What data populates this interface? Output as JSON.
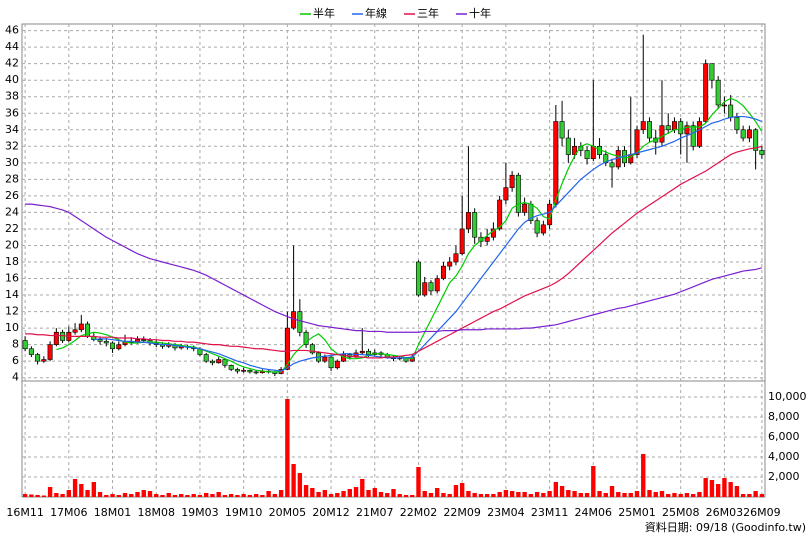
{
  "chart_data": {
    "type": "candlestick",
    "legend": "top",
    "grid": true,
    "source": "資料日期: 09/18  (Goodinfo.tw)",
    "up_color": "#ff0000",
    "down_color": "#33cc33",
    "volume_color": "#ff0000",
    "categories": [
      "16M11",
      null,
      null,
      null,
      null,
      null,
      null,
      "17M06",
      null,
      null,
      null,
      null,
      null,
      null,
      "18M01",
      null,
      null,
      null,
      null,
      null,
      null,
      "18M08",
      null,
      null,
      null,
      null,
      null,
      null,
      "19M03",
      null,
      null,
      null,
      null,
      null,
      null,
      "19M10",
      null,
      null,
      null,
      null,
      null,
      null,
      "20M05",
      null,
      null,
      null,
      null,
      null,
      null,
      "20M12",
      null,
      null,
      null,
      null,
      null,
      null,
      "21M07",
      null,
      null,
      null,
      null,
      null,
      null,
      "22M02",
      null,
      null,
      null,
      null,
      null,
      null,
      "22M09",
      null,
      null,
      null,
      null,
      null,
      null,
      "23M04",
      null,
      null,
      null,
      null,
      null,
      null,
      "23M11",
      null,
      null,
      null,
      null,
      null,
      null,
      "24M06",
      null,
      null,
      null,
      null,
      null,
      null,
      "25M01",
      null,
      null,
      null,
      null,
      null,
      null,
      "25M08",
      null,
      null,
      null,
      null,
      null,
      null,
      "26M03",
      null,
      null,
      null,
      null,
      null,
      "26M09"
    ],
    "open": [
      8.5,
      7.5,
      6.8,
      6,
      6.2,
      8,
      9.5,
      8.5,
      9.5,
      9.8,
      10.5,
      9,
      8.6,
      8.4,
      8.2,
      7.5,
      8,
      8.4,
      8.3,
      8.6,
      8.5,
      8.2,
      8,
      7.8,
      8,
      7.6,
      7.8,
      7.7,
      7.5,
      6.8,
      6,
      5.8,
      6.2,
      5.5,
      5,
      4.8,
      4.9,
      4.7,
      4.6,
      4.8,
      4.7,
      4.5,
      5,
      10,
      12,
      9.5,
      8,
      7,
      6,
      6.5,
      5.2,
      6,
      6.8,
      6.5,
      7,
      7.2,
      6.8,
      7,
      6.8,
      6.5,
      6.3,
      6.4,
      6,
      18,
      14,
      15.5,
      14.5,
      16,
      17.5,
      18,
      19,
      22,
      24,
      21,
      20.5,
      21,
      22,
      25.5,
      27,
      28.5,
      24,
      25,
      23,
      21.5,
      22.5,
      25,
      35,
      33,
      31,
      32,
      31.5,
      30.5,
      32,
      31,
      30,
      29.5,
      31.5,
      30,
      31,
      34,
      35,
      33,
      32.5,
      34.5,
      34,
      35,
      33.5,
      34.5,
      32,
      35,
      42,
      40,
      37,
      37,
      35.5,
      34,
      33,
      34,
      31.5
    ],
    "high": [
      9,
      7.8,
      7,
      6.6,
      8.4,
      10,
      9.8,
      10.2,
      10.6,
      11.6,
      10.8,
      9.4,
      9,
      8.8,
      8.4,
      8.4,
      9.2,
      8.9,
      9,
      9,
      8.8,
      8.6,
      8.3,
      8.3,
      8.2,
      8.1,
      8,
      7.9,
      7.7,
      7,
      6.2,
      6.5,
      6.3,
      5.6,
      5.2,
      5.2,
      5,
      4.9,
      5,
      4.9,
      4.8,
      5.3,
      12,
      20,
      13.5,
      9.8,
      8.2,
      7.2,
      6.8,
      6.6,
      6.2,
      7.2,
      7,
      7.4,
      10,
      7.5,
      7.4,
      7.2,
      7,
      6.7,
      6.6,
      6.5,
      6.9,
      18.2,
      16.2,
      15.8,
      16.4,
      18,
      18.6,
      20,
      26,
      32,
      24.5,
      21.6,
      22,
      22.8,
      26,
      30,
      29,
      28.8,
      25.8,
      25.4,
      23.4,
      23,
      25.5,
      37,
      37.5,
      34,
      33,
      32.5,
      32,
      40,
      33,
      31.5,
      30.5,
      32,
      32,
      38,
      34.5,
      45.5,
      35.5,
      34,
      40,
      36,
      35.5,
      35.4,
      35,
      35,
      35.5,
      42.5,
      42,
      40.5,
      38,
      38.2,
      36,
      34.5,
      34.5,
      34.2,
      32
    ],
    "low": [
      7.2,
      6.5,
      5.6,
      5.8,
      6,
      7.8,
      8.2,
      8.3,
      9.2,
      9.5,
      8.8,
      8.4,
      8,
      7.8,
      7,
      7.3,
      7.8,
      8,
      8.1,
      8.2,
      7.9,
      7.7,
      7.5,
      7.6,
      7.3,
      7.4,
      7.4,
      7.2,
      6.6,
      5.8,
      5.5,
      5.7,
      5.2,
      4.8,
      4.5,
      4.6,
      4.5,
      4.4,
      4.5,
      4.5,
      4.2,
      4.4,
      4.9,
      9.8,
      9,
      7.6,
      6.8,
      5.8,
      5.8,
      4.8,
      5,
      5.9,
      6.2,
      6.4,
      6.8,
      6.5,
      6.7,
      6.5,
      6.3,
      6,
      6.1,
      5.8,
      5.9,
      13.8,
      13.8,
      14,
      14.2,
      15.8,
      17,
      17.6,
      18.8,
      21.5,
      20.2,
      19.8,
      20,
      20.6,
      21.8,
      25,
      26.5,
      23.5,
      23.6,
      22.6,
      21,
      21.2,
      22,
      24.6,
      32,
      30,
      30.5,
      30.8,
      29.8,
      30.2,
      30.5,
      29.6,
      27,
      29.2,
      29.5,
      29.8,
      30.6,
      33.5,
      32.5,
      31,
      32,
      33.5,
      33.6,
      31,
      30,
      31.5,
      31.8,
      34.8,
      39,
      36.5,
      36,
      35,
      33.5,
      32.6,
      32.5,
      29.2,
      30.5
    ],
    "close": [
      7.5,
      6.8,
      6,
      6.2,
      8,
      9.5,
      8.5,
      9.5,
      9.8,
      10.5,
      9,
      8.6,
      8.4,
      8.2,
      7.5,
      8,
      8.4,
      8.3,
      8.6,
      8.5,
      8.2,
      8,
      7.8,
      8,
      7.6,
      7.8,
      7.7,
      7.5,
      6.8,
      6,
      5.8,
      6.2,
      5.5,
      5,
      4.8,
      4.9,
      4.7,
      4.6,
      4.8,
      4.7,
      4.5,
      5,
      10,
      12,
      9.5,
      8,
      7,
      6,
      6.5,
      5.2,
      6,
      6.8,
      6.5,
      7,
      7.2,
      6.8,
      7,
      6.8,
      6.5,
      6.3,
      6.4,
      6,
      6.5,
      14,
      15.5,
      14.5,
      16,
      17.5,
      18,
      19,
      22,
      24,
      21,
      20.5,
      21,
      22,
      25.5,
      27,
      28.5,
      24,
      25,
      23,
      21.5,
      22.5,
      25,
      35,
      33,
      31,
      32,
      31.5,
      30.5,
      32,
      31,
      30,
      29.5,
      31.5,
      30,
      31,
      34,
      35,
      33,
      32.5,
      34.5,
      34,
      35,
      33.5,
      34.5,
      32,
      35,
      42,
      40,
      37,
      37,
      35.5,
      34,
      33,
      34,
      31.5,
      31
    ],
    "volume": [
      300,
      250,
      200,
      150,
      1000,
      400,
      300,
      700,
      1800,
      1300,
      700,
      1500,
      500,
      200,
      300,
      200,
      400,
      300,
      500,
      700,
      600,
      300,
      200,
      400,
      200,
      300,
      200,
      300,
      200,
      400,
      300,
      500,
      200,
      300,
      200,
      300,
      200,
      300,
      200,
      600,
      300,
      700,
      9800,
      3300,
      2400,
      1200,
      900,
      500,
      700,
      300,
      400,
      600,
      800,
      1000,
      1800,
      700,
      900,
      500,
      400,
      800,
      300,
      200,
      200,
      3000,
      600,
      400,
      900,
      400,
      300,
      1200,
      1400,
      600,
      400,
      300,
      300,
      300,
      500,
      700,
      600,
      500,
      500,
      300,
      500,
      400,
      600,
      1500,
      1100,
      700,
      600,
      400,
      400,
      3100,
      600,
      400,
      1100,
      500,
      400,
      400,
      600,
      4300,
      700,
      500,
      600,
      300,
      400,
      300,
      400,
      300,
      500,
      1900,
      1700,
      1300,
      1900,
      1500,
      1100,
      300,
      300,
      600,
      300
    ],
    "series": [
      {
        "name": "半年",
        "color": "#00cc00",
        "values": [
          null,
          null,
          null,
          null,
          null,
          7.4,
          7.6,
          8,
          8.5,
          9.1,
          9.3,
          9.5,
          9.4,
          9.2,
          8.9,
          8.6,
          8.3,
          8.2,
          8.2,
          8.3,
          8.3,
          8.3,
          8.2,
          8.1,
          8,
          7.9,
          7.8,
          7.7,
          7.5,
          7.2,
          6.9,
          6.6,
          6.3,
          6,
          5.6,
          5.3,
          5.1,
          4.9,
          4.8,
          4.7,
          4.7,
          4.7,
          5.6,
          6.8,
          7.6,
          8.3,
          8.9,
          9.3,
          8.6,
          7.5,
          6.9,
          6.5,
          6.3,
          6.3,
          6.4,
          6.7,
          6.9,
          6.9,
          6.8,
          6.7,
          6.6,
          6.4,
          6.3,
          8,
          9.5,
          11,
          12.5,
          14,
          15.5,
          16.3,
          17.5,
          19,
          20,
          20.6,
          21.2,
          21.8,
          22.2,
          23,
          24.5,
          25,
          25.2,
          25,
          24.5,
          23.5,
          23.2,
          25.5,
          27.5,
          29.3,
          30.8,
          32,
          32.3,
          32,
          31.6,
          31.3,
          31,
          30.8,
          30.6,
          30.7,
          31.2,
          32,
          32.5,
          32.8,
          33.2,
          33.6,
          34,
          34.1,
          34.3,
          34.4,
          34.3,
          34.8,
          35.8,
          36.6,
          37.4,
          37.8,
          37.5,
          36.9,
          36,
          35,
          33.8
        ]
      },
      {
        "name": "年線",
        "color": "#2266ee",
        "values": [
          null,
          null,
          null,
          null,
          null,
          null,
          null,
          null,
          null,
          null,
          null,
          8.6,
          8.7,
          8.7,
          8.6,
          8.5,
          8.4,
          8.4,
          8.3,
          8.3,
          8.2,
          8.1,
          8,
          8,
          7.9,
          7.8,
          7.7,
          7.6,
          7.5,
          7.3,
          7.1,
          6.9,
          6.6,
          6.3,
          6,
          5.8,
          5.5,
          5.3,
          5.1,
          5,
          4.9,
          4.8,
          5.2,
          5.7,
          6,
          6.2,
          6.4,
          6.5,
          6.6,
          6.7,
          6.8,
          6.9,
          6.9,
          6.8,
          6.8,
          6.7,
          6.6,
          6.5,
          6.4,
          6.4,
          6.4,
          6.4,
          6.5,
          7.2,
          8,
          8.8,
          9.6,
          10.4,
          11.2,
          12,
          13,
          14,
          15,
          16,
          17,
          18,
          19,
          20,
          21,
          22,
          22.8,
          23.3,
          23.6,
          23.8,
          24,
          24.8,
          25.6,
          26.4,
          27.2,
          28,
          28.6,
          29.2,
          29.7,
          30.1,
          30.4,
          30.6,
          30.8,
          31,
          31.2,
          31.4,
          31.6,
          31.8,
          32,
          32.3,
          32.6,
          33,
          33.3,
          33.6,
          34,
          34.4,
          34.8,
          35,
          35.3,
          35.5,
          35.6,
          35.6,
          35.5,
          35.3,
          35
        ]
      },
      {
        "name": "三年",
        "color": "#e0104a",
        "values": [
          9.3,
          9.3,
          9.2,
          9.2,
          9.1,
          9.1,
          9.1,
          9,
          9,
          9,
          9,
          9,
          8.9,
          8.9,
          8.9,
          8.8,
          8.8,
          8.8,
          8.7,
          8.7,
          8.6,
          8.6,
          8.5,
          8.5,
          8.4,
          8.4,
          8.3,
          8.3,
          8.2,
          8.1,
          8,
          8,
          7.9,
          7.8,
          7.8,
          7.7,
          7.6,
          7.5,
          7.5,
          7.4,
          7.3,
          7.2,
          7.2,
          7.3,
          7.3,
          7.3,
          7.2,
          7.1,
          7,
          6.9,
          6.8,
          6.7,
          6.6,
          6.5,
          6.5,
          6.4,
          6.4,
          6.4,
          6.5,
          6.5,
          6.6,
          6.7,
          6.8,
          7.2,
          7.6,
          8,
          8.4,
          8.8,
          9.2,
          9.6,
          10,
          10.4,
          10.8,
          11.2,
          11.6,
          12,
          12.3,
          12.7,
          13.1,
          13.5,
          13.9,
          14.2,
          14.5,
          14.8,
          15.1,
          15.5,
          16,
          16.6,
          17.3,
          18,
          18.7,
          19.4,
          20.1,
          20.8,
          21.5,
          22.1,
          22.7,
          23.3,
          23.9,
          24.4,
          24.9,
          25.4,
          25.9,
          26.4,
          26.9,
          27.4,
          27.8,
          28.2,
          28.6,
          29,
          29.5,
          30,
          30.5,
          31,
          31.3,
          31.5,
          31.7,
          31.8,
          32
        ]
      },
      {
        "name": "十年",
        "color": "#7a1fd0",
        "values": [
          25,
          25,
          24.9,
          24.8,
          24.7,
          24.5,
          24.3,
          24,
          23.5,
          23,
          22.5,
          22,
          21.5,
          21,
          20.6,
          20.2,
          19.8,
          19.4,
          19,
          18.7,
          18.4,
          18.2,
          18,
          17.8,
          17.6,
          17.4,
          17.2,
          17,
          16.7,
          16.4,
          16,
          15.6,
          15.2,
          14.8,
          14.4,
          14,
          13.6,
          13.2,
          12.8,
          12.4,
          12,
          11.7,
          11.4,
          11.1,
          10.9,
          10.7,
          10.5,
          10.3,
          10.2,
          10.1,
          10,
          9.9,
          9.8,
          9.7,
          9.7,
          9.6,
          9.6,
          9.6,
          9.5,
          9.5,
          9.5,
          9.5,
          9.5,
          9.5,
          9.6,
          9.6,
          9.6,
          9.7,
          9.7,
          9.7,
          9.8,
          9.8,
          9.8,
          9.8,
          9.9,
          9.9,
          9.9,
          9.9,
          9.9,
          9.9,
          10,
          10,
          10.1,
          10.2,
          10.3,
          10.4,
          10.6,
          10.8,
          11,
          11.2,
          11.4,
          11.6,
          11.8,
          12,
          12.2,
          12.4,
          12.5,
          12.7,
          12.9,
          13.1,
          13.3,
          13.5,
          13.7,
          13.9,
          14.1,
          14.4,
          14.7,
          15,
          15.3,
          15.6,
          15.9,
          16.1,
          16.3,
          16.5,
          16.7,
          16.9,
          17,
          17.1,
          17.3
        ]
      }
    ],
    "ylim": [
      3.6,
      46.8
    ],
    "yticks": [
      4,
      6,
      8,
      10,
      12,
      14,
      16,
      18,
      20,
      22,
      24,
      26,
      28,
      30,
      32,
      34,
      36,
      38,
      40,
      42,
      44,
      46
    ],
    "y2lim": [
      0,
      11600
    ],
    "y2ticks": [
      {
        "value": 2000,
        "label": "2,000"
      },
      {
        "value": 4000,
        "label": "4,000"
      },
      {
        "value": 6000,
        "label": "6,000"
      },
      {
        "value": 8000,
        "label": "8,000"
      },
      {
        "value": 10000,
        "label": "10,000"
      }
    ]
  }
}
